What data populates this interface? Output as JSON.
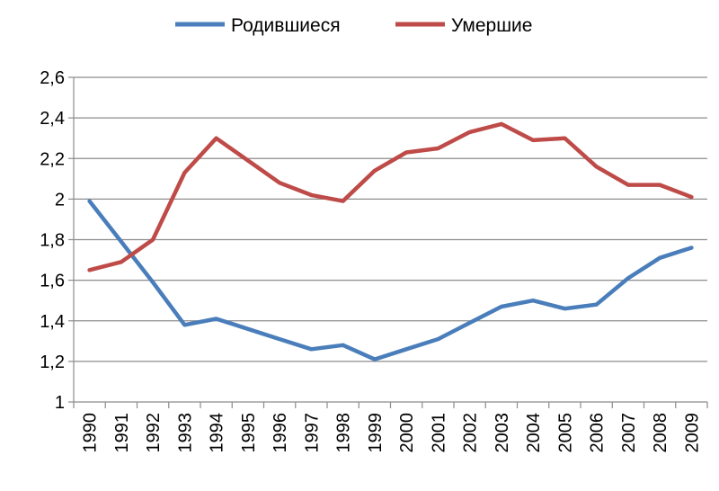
{
  "chart_data": {
    "type": "line",
    "title": "",
    "xlabel": "",
    "ylabel": "",
    "ylim": [
      1,
      2.6
    ],
    "yticks": [
      1,
      1.2,
      1.4,
      1.6,
      1.8,
      2,
      2.2,
      2.4,
      2.6
    ],
    "ytick_labels": [
      "1",
      "1,2",
      "1,4",
      "1,6",
      "1,8",
      "2",
      "2,2",
      "2,4",
      "2,6"
    ],
    "grid": "horizontal",
    "legend": "top",
    "categories": [
      "1990",
      "1991",
      "1992",
      "1993",
      "1994",
      "1995",
      "1996",
      "1997",
      "1998",
      "1999",
      "2000",
      "2001",
      "2002",
      "2003",
      "2004",
      "2005",
      "2006",
      "2007",
      "2008",
      "2009"
    ],
    "series": [
      {
        "name": "Родившиеся",
        "color": "#4A7EBB",
        "values": [
          1.99,
          1.79,
          1.59,
          1.38,
          1.41,
          1.36,
          1.31,
          1.26,
          1.28,
          1.21,
          1.26,
          1.31,
          1.39,
          1.47,
          1.5,
          1.46,
          1.48,
          1.61,
          1.71,
          1.76
        ]
      },
      {
        "name": "Умершие",
        "color": "#BE4B48",
        "values": [
          1.65,
          1.69,
          1.8,
          2.13,
          2.3,
          2.19,
          2.08,
          2.02,
          1.99,
          2.14,
          2.23,
          2.25,
          2.33,
          2.37,
          2.29,
          2.3,
          2.16,
          2.07,
          2.07,
          2.01
        ]
      }
    ]
  }
}
